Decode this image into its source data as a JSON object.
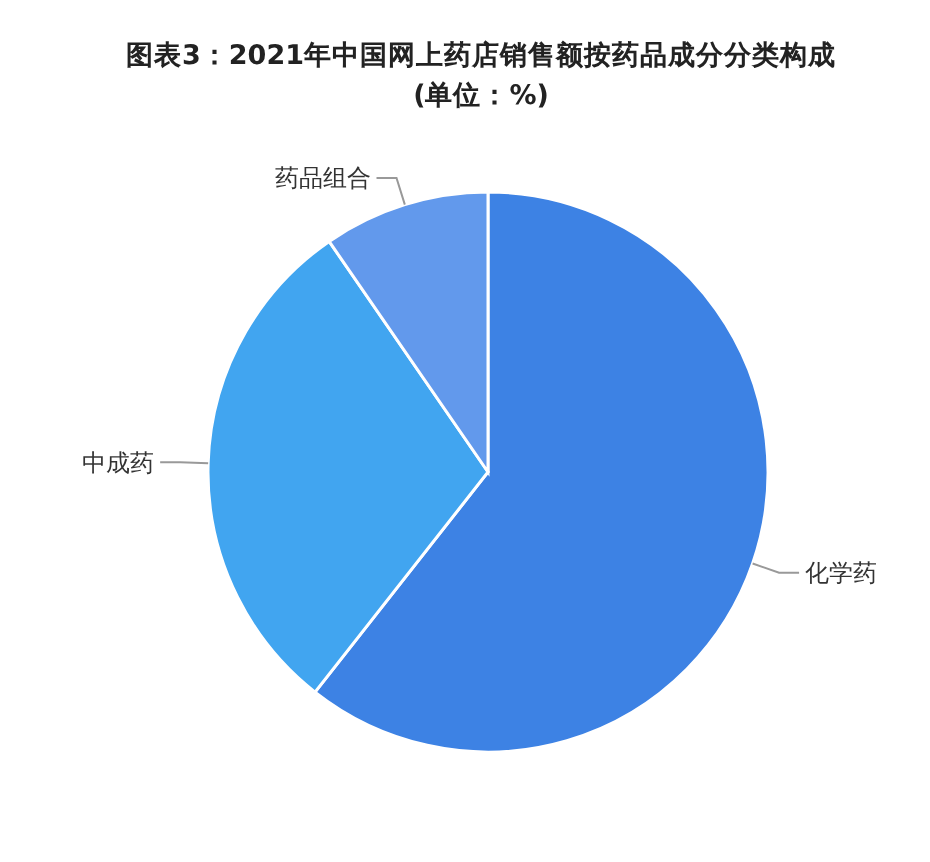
{
  "chart_data": {
    "type": "pie",
    "title": "图表3：2021年中国网上药店销售额按药品成分分类构成",
    "subtitle": "(单位：%)",
    "categories": [
      "化学药",
      "中成药",
      "药品组合"
    ],
    "values": [
      60.6,
      29.8,
      9.6
    ],
    "colors": [
      "#3d82e4",
      "#41a5f0",
      "#6299ec"
    ]
  }
}
